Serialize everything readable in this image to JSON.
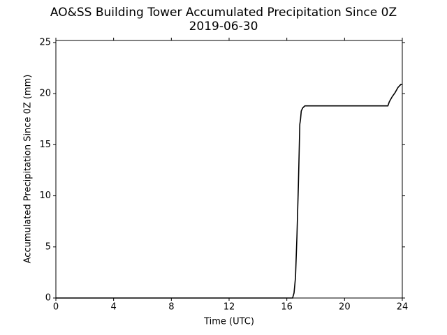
{
  "chart_data": {
    "type": "line",
    "title": "AO&SS Building Tower Accumulated Precipitation Since 0Z",
    "subtitle": "2019-06-30",
    "x_label": "Time (UTC)",
    "y_label": "Accumulated Precipitation Since 0Z (mm)",
    "x": [
      0,
      16.4,
      16.5,
      16.6,
      16.7,
      16.8,
      16.9,
      16.95,
      17.0,
      17.1,
      17.25,
      23.0,
      23.1,
      23.3,
      23.5,
      23.7,
      23.9,
      24.0
    ],
    "values": [
      0,
      0,
      0.5,
      2,
      6,
      11,
      17,
      17.5,
      18.3,
      18.6,
      18.8,
      18.8,
      19.2,
      19.7,
      20.1,
      20.6,
      20.9,
      20.9
    ],
    "color": "#000000",
    "xlim": [
      0,
      24
    ],
    "xticks": [
      0,
      4,
      8,
      12,
      16,
      20,
      24
    ],
    "ylim": [
      0,
      25.2
    ],
    "yticks": [
      0,
      5,
      10,
      15,
      20,
      25
    ],
    "grid": false
  }
}
